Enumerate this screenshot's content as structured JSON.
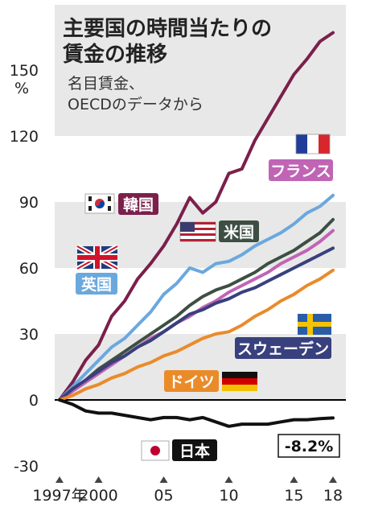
{
  "chart_data": {
    "type": "line",
    "title_line1": "主要国の時間当たりの",
    "title_line2": "賃金の推移",
    "subtitle_line1": "名目賃金、",
    "subtitle_line2": "OECDのデータから",
    "ylabel": "%",
    "ylim": [
      -30,
      170
    ],
    "yticks": [
      -30,
      0,
      30,
      60,
      90,
      120,
      150
    ],
    "xlim": [
      1997,
      2018
    ],
    "xticks": [
      {
        "x": 1997,
        "label": "1997年"
      },
      {
        "x": 2000,
        "label": "2000"
      },
      {
        "x": 2005,
        "label": "05"
      },
      {
        "x": 2010,
        "label": "10"
      },
      {
        "x": 2015,
        "label": "15"
      },
      {
        "x": 2018,
        "label": "18"
      }
    ],
    "x": [
      1997,
      1998,
      1999,
      2000,
      2001,
      2002,
      2003,
      2004,
      2005,
      2006,
      2007,
      2008,
      2009,
      2010,
      2011,
      2012,
      2013,
      2014,
      2015,
      2016,
      2017,
      2018
    ],
    "series": [
      {
        "name": "韓国",
        "color": "#7b1f4b",
        "values": [
          0,
          8,
          18,
          25,
          38,
          45,
          55,
          62,
          70,
          80,
          92,
          85,
          90,
          103,
          105,
          118,
          128,
          138,
          148,
          155,
          163,
          167
        ]
      },
      {
        "name": "英国",
        "color": "#6aa8de",
        "values": [
          0,
          6,
          12,
          18,
          24,
          28,
          34,
          40,
          48,
          53,
          60,
          58,
          62,
          63,
          66,
          70,
          73,
          76,
          80,
          85,
          88,
          93
        ]
      },
      {
        "name": "米国",
        "color": "#3d4f43",
        "values": [
          0,
          4,
          9,
          14,
          18,
          22,
          26,
          30,
          34,
          38,
          43,
          47,
          50,
          52,
          55,
          58,
          62,
          65,
          68,
          72,
          76,
          82
        ]
      },
      {
        "name": "フランス",
        "color": "#c064b5",
        "values": [
          0,
          4,
          8,
          12,
          16,
          20,
          24,
          28,
          31,
          35,
          38,
          42,
          45,
          49,
          52,
          55,
          58,
          62,
          65,
          68,
          72,
          77
        ]
      },
      {
        "name": "スウェーデン",
        "color": "#38407d",
        "values": [
          0,
          5,
          9,
          13,
          17,
          20,
          24,
          27,
          31,
          35,
          39,
          41,
          44,
          46,
          49,
          51,
          54,
          57,
          60,
          63,
          66,
          69
        ]
      },
      {
        "name": "ドイツ",
        "color": "#ea8b2a",
        "values": [
          0,
          2,
          5,
          7,
          10,
          12,
          15,
          17,
          20,
          22,
          25,
          28,
          30,
          31,
          34,
          38,
          41,
          45,
          48,
          52,
          55,
          59
        ]
      },
      {
        "name": "日本",
        "color": "#111111",
        "values": [
          0,
          -2,
          -5,
          -6,
          -6,
          -7,
          -8,
          -9,
          -8,
          -8,
          -9,
          -8,
          -10,
          -12,
          -11,
          -11,
          -11,
          -10,
          -9,
          -9,
          -8.5,
          -8.2
        ]
      }
    ],
    "annotations": [
      {
        "text": "-8.2%",
        "x": 2018,
        "y": -8.2
      }
    ],
    "grid": "horizontal-bands"
  },
  "labels": {
    "korea": "韓国",
    "uk": "英国",
    "us": "米国",
    "france": "フランス",
    "sweden": "スウェーデン",
    "germany": "ドイツ",
    "japan": "日本",
    "japan_value": "-8.2%"
  }
}
